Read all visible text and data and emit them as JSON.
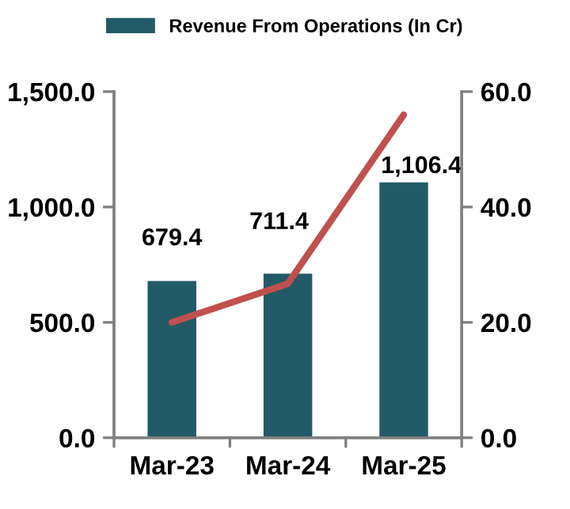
{
  "chart_data": {
    "type": "bar",
    "categories": [
      "Mar-23",
      "Mar-24",
      "Mar-25"
    ],
    "series": [
      {
        "name": "Revenue From Operations (In Cr)",
        "color": "#235a68",
        "values": [
          679.4,
          711.4,
          1106.4
        ],
        "value_labels": [
          "679.4",
          "711.4",
          "1,106.4"
        ]
      },
      {
        "type": "line",
        "axis": "y2",
        "color": "#c0504d",
        "values": [
          20,
          26.7,
          56
        ]
      }
    ],
    "ylim": [
      0,
      1500
    ],
    "yticks": [
      {
        "value": 0,
        "label": "0.0"
      },
      {
        "value": 500,
        "label": "500.0"
      },
      {
        "value": 1000,
        "label": "1,000.0"
      },
      {
        "value": 1500,
        "label": "1,500.0"
      }
    ],
    "y2lim": [
      0,
      60
    ],
    "y2ticks": [
      {
        "value": 0,
        "label": "0.0"
      },
      {
        "value": 20,
        "label": "20.0"
      },
      {
        "value": 40,
        "label": "40.0"
      },
      {
        "value": 60,
        "label": "60.0"
      }
    ],
    "legend": "top",
    "grid": false,
    "marker": "none",
    "line_style": "solid"
  }
}
